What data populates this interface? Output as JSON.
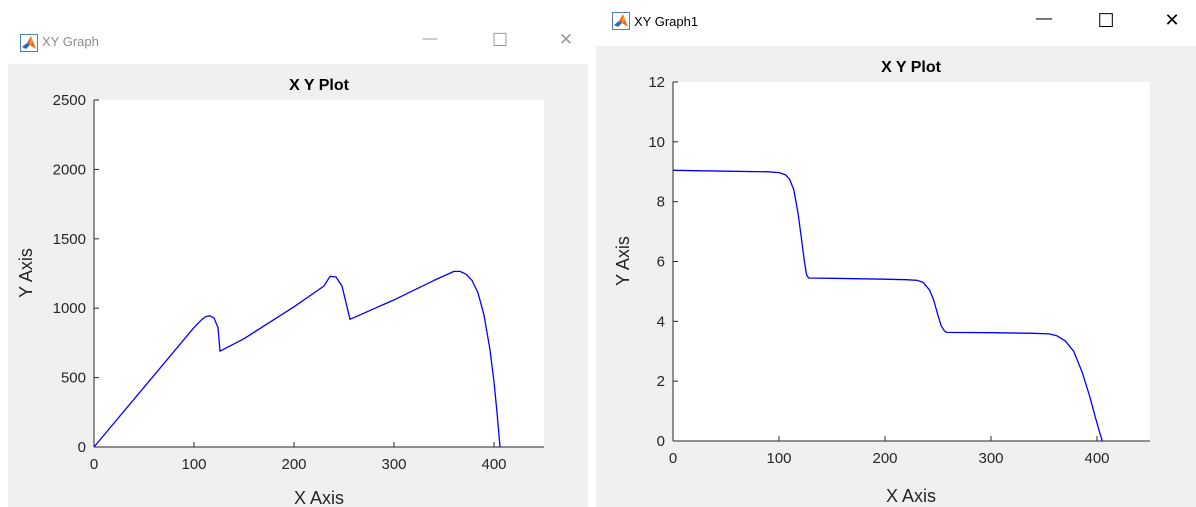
{
  "windows": [
    {
      "title": "XY Graph",
      "active": false,
      "icon": "matlab-logo-icon",
      "controls": {
        "minimize": "—",
        "maximize": "☐",
        "close": "✕"
      },
      "chart_data": {
        "type": "line",
        "title": "X Y Plot",
        "xlabel": "X Axis",
        "ylabel": "Y Axis",
        "xlim": [
          0,
          450
        ],
        "ylim": [
          0,
          2500
        ],
        "xticks": [
          0,
          100,
          200,
          300,
          400
        ],
        "yticks": [
          0,
          500,
          1000,
          1500,
          2000,
          2500
        ],
        "grid": false,
        "series": [
          {
            "color": "#0000ff",
            "x": [
              0,
              50,
              100,
              108,
              112,
              116,
              120,
              124,
              126,
              150,
              200,
              230,
              236,
              242,
              248,
              252,
              256,
              300,
              340,
              360,
              366,
              372,
              378,
              384,
              390,
              396,
              400,
              403,
              406
            ],
            "y": [
              0,
              430,
              860,
              920,
              940,
              945,
              930,
              860,
              690,
              780,
              1010,
              1160,
              1230,
              1225,
              1160,
              1040,
              920,
              1060,
              1200,
              1265,
              1265,
              1245,
              1200,
              1110,
              950,
              700,
              470,
              250,
              0
            ]
          }
        ]
      }
    },
    {
      "title": "XY Graph1",
      "active": true,
      "icon": "matlab-logo-icon",
      "controls": {
        "minimize": "—",
        "maximize": "☐",
        "close": "✕"
      },
      "chart_data": {
        "type": "line",
        "title": "X Y Plot",
        "xlabel": "X Axis",
        "ylabel": "Y Axis",
        "xlim": [
          0,
          450
        ],
        "ylim": [
          0,
          12
        ],
        "xticks": [
          0,
          100,
          200,
          300,
          400
        ],
        "yticks": [
          0,
          2,
          4,
          6,
          8,
          10,
          12
        ],
        "grid": false,
        "series": [
          {
            "color": "#0000ff",
            "x": [
              0,
              50,
              90,
              100,
              106,
              110,
              114,
              118,
              121,
              124,
              126,
              128,
              150,
              200,
              220,
              230,
              236,
              242,
              246,
              250,
              253,
              256,
              258,
              300,
              340,
              355,
              362,
              370,
              378,
              386,
              393,
              398,
              402,
              405
            ],
            "y": [
              9.05,
              9.02,
              9.0,
              8.97,
              8.9,
              8.75,
              8.4,
              7.6,
              6.8,
              6.0,
              5.55,
              5.45,
              5.44,
              5.41,
              5.39,
              5.37,
              5.3,
              5.05,
              4.7,
              4.2,
              3.85,
              3.68,
              3.63,
              3.62,
              3.6,
              3.58,
              3.52,
              3.35,
              3.0,
              2.3,
              1.5,
              0.85,
              0.35,
              0
            ]
          }
        ]
      }
    }
  ]
}
